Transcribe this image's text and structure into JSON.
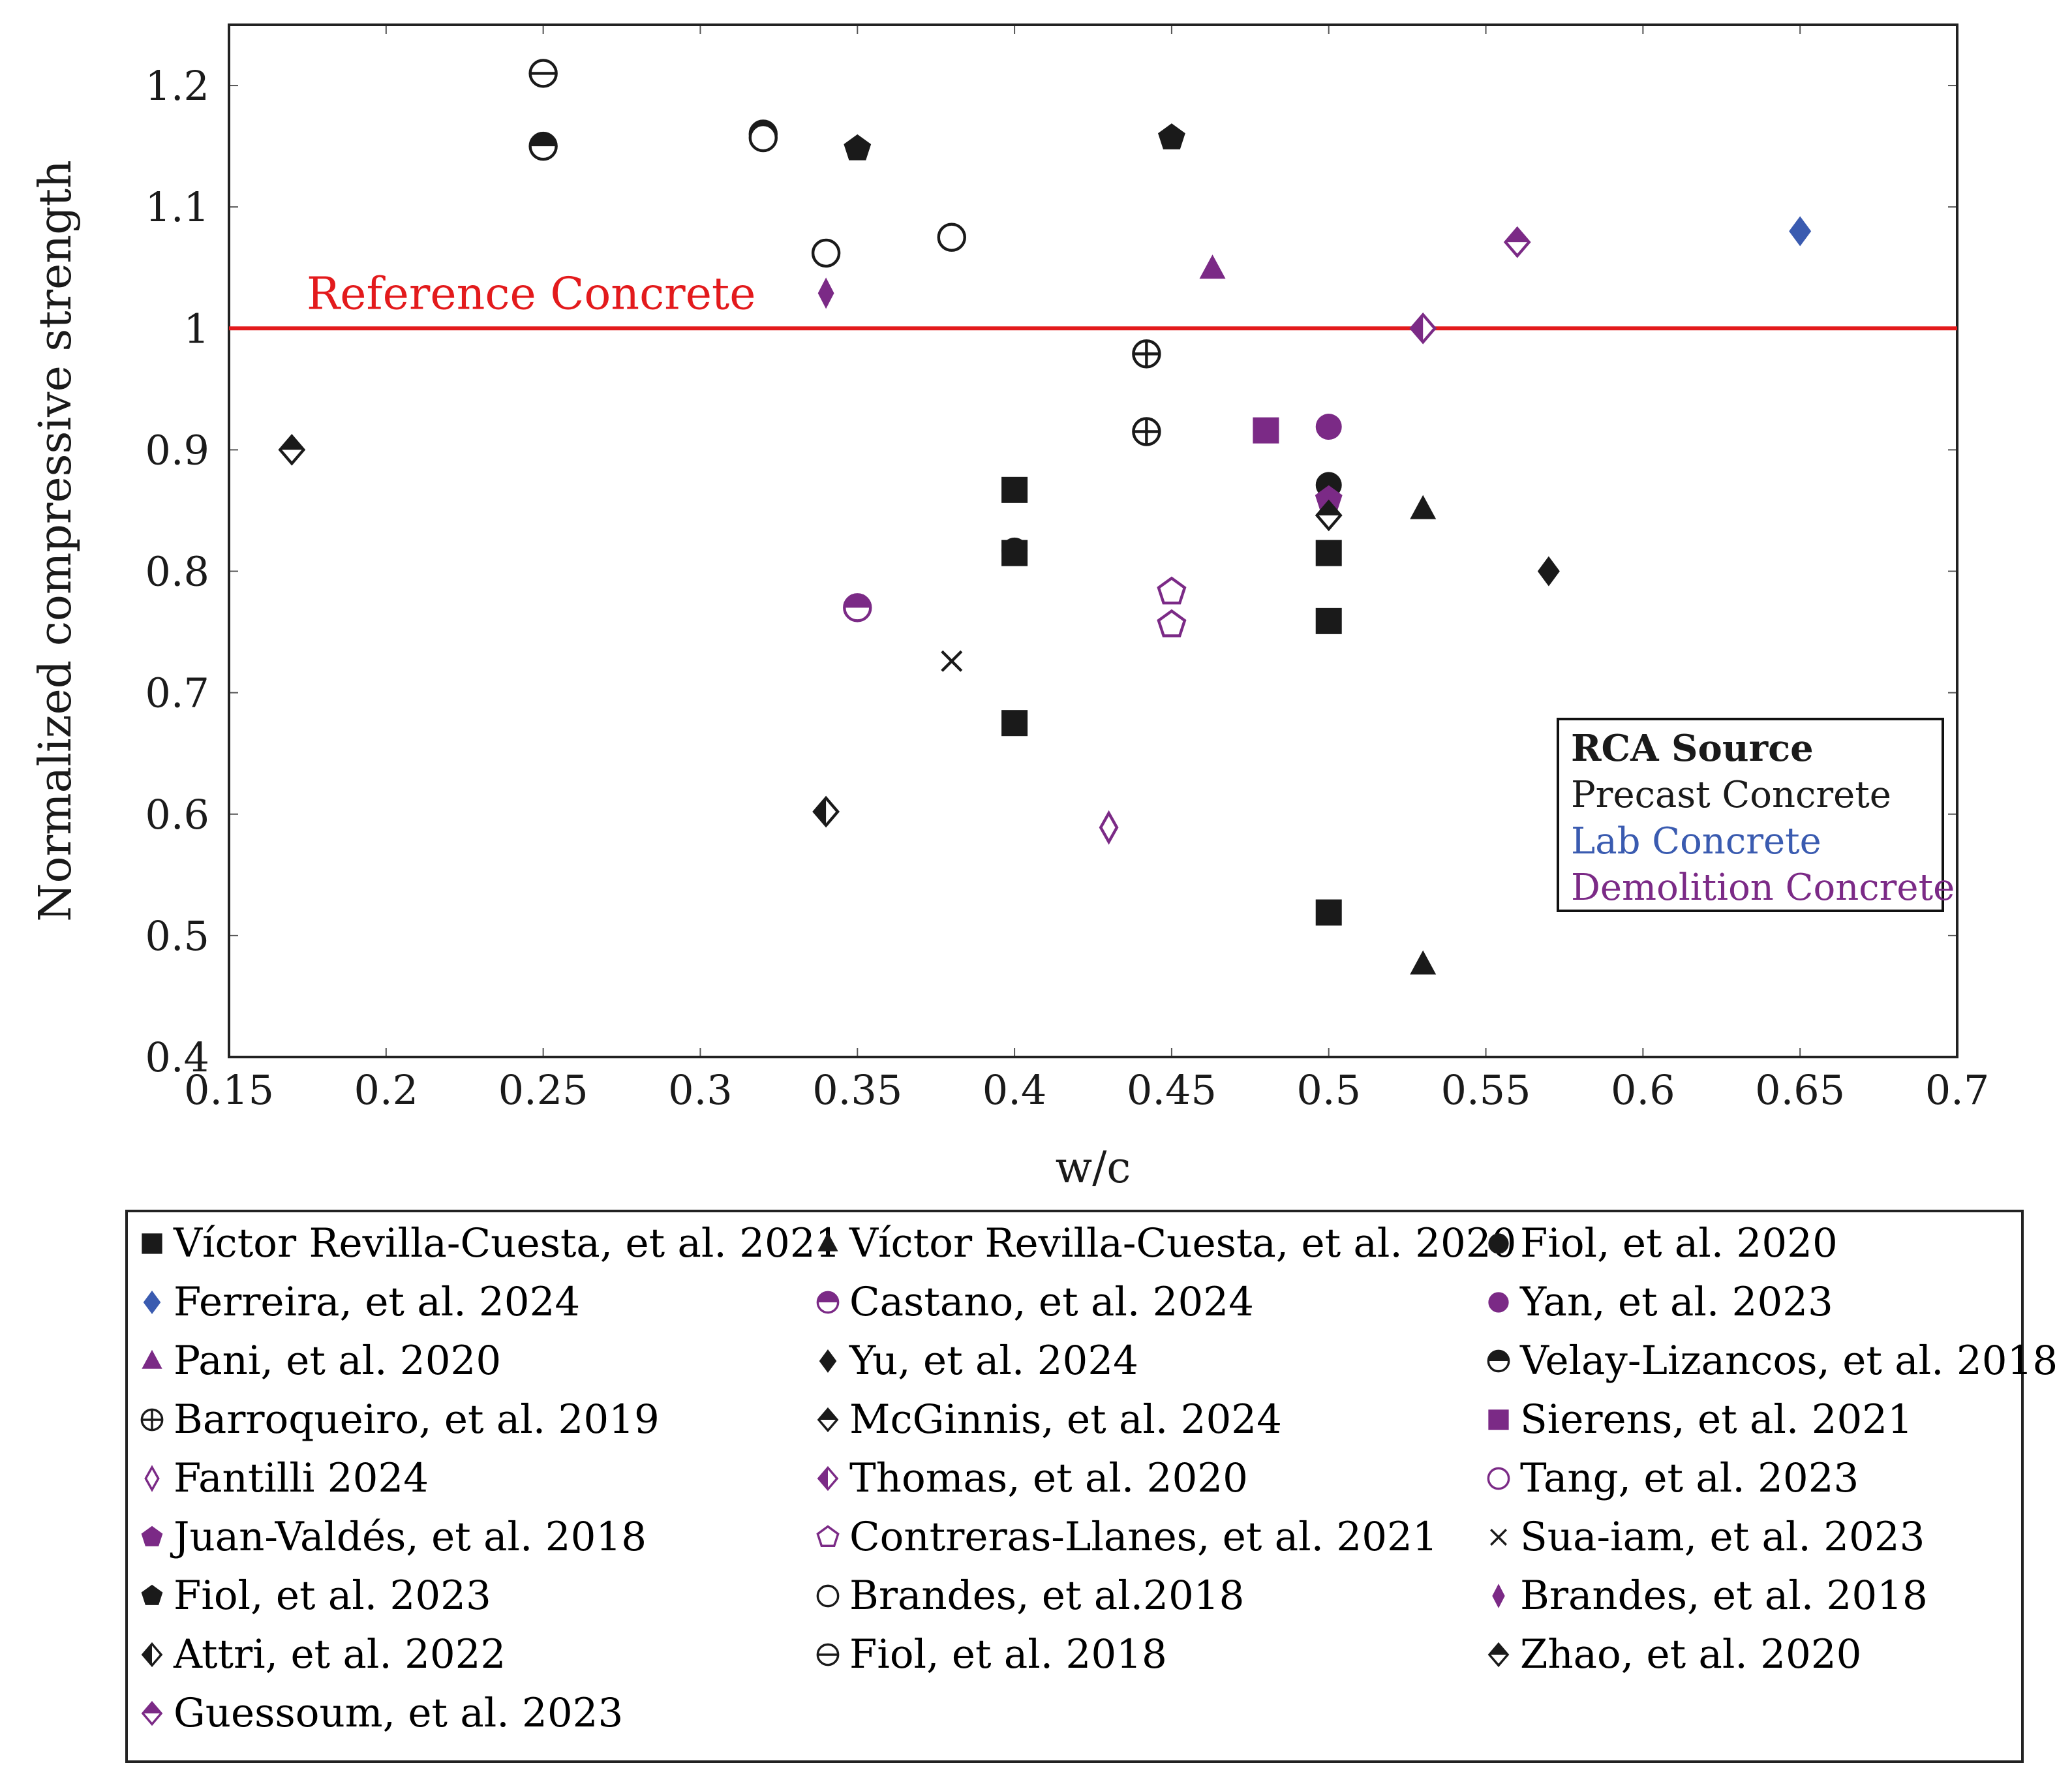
{
  "chart_data": {
    "type": "scatter",
    "title": "",
    "xlabel": "w/c",
    "ylabel": "Normalized compressive strength",
    "xlim": [
      0.15,
      0.7
    ],
    "ylim": [
      0.4,
      1.25
    ],
    "xticks": [
      "0.15",
      "0.2",
      "0.25",
      "0.3",
      "0.35",
      "0.4",
      "0.45",
      "0.5",
      "0.55",
      "0.6",
      "0.65",
      "0.7"
    ],
    "yticks": [
      "0.4",
      "0.5",
      "0.6",
      "0.7",
      "0.8",
      "0.9",
      "1",
      "1.1",
      "1.2"
    ],
    "reference_line": {
      "y": 1.0,
      "label": "Reference Concrete",
      "color": "#e31a1c"
    },
    "source_legend": {
      "title": "RCA Source",
      "entries": [
        {
          "label": "Precast Concrete",
          "color": "#1a1a1a"
        },
        {
          "label": "Lab Concrete",
          "color": "#3a5bb0"
        },
        {
          "label": "Demolition Concrete",
          "color": "#7b2a86"
        }
      ]
    },
    "series": [
      {
        "name": "Víctor Revilla-Cuesta, et al. 2021",
        "marker": "square",
        "color": "#1a1a1a",
        "points": [
          [
            0.4,
            0.867
          ],
          [
            0.4,
            0.815
          ],
          [
            0.4,
            0.675
          ],
          [
            0.5,
            0.815
          ],
          [
            0.5,
            0.759
          ],
          [
            0.5,
            0.519
          ]
        ]
      },
      {
        "name": "Víctor Revilla-Cuesta, et al. 2020",
        "marker": "triangle",
        "color": "#1a1a1a",
        "points": [
          [
            0.53,
            0.851
          ],
          [
            0.53,
            0.476
          ]
        ]
      },
      {
        "name": "Fiol, et al. 2020",
        "marker": "circle",
        "color": "#1a1a1a",
        "points": [
          [
            0.4,
            0.817
          ],
          [
            0.5,
            0.871
          ]
        ]
      },
      {
        "name": "Ferreira, et al. 2024",
        "marker": "diamond",
        "color": "#3a5bb0",
        "points": [
          [
            0.65,
            1.08
          ]
        ]
      },
      {
        "name": "Castano, et al. 2024",
        "marker": "halfcircle-top",
        "color": "#7b2a86",
        "points": [
          [
            0.35,
            0.77
          ]
        ]
      },
      {
        "name": "Yan, et al. 2023",
        "marker": "circle",
        "color": "#7b2a86",
        "points": [
          [
            0.5,
            0.919
          ]
        ]
      },
      {
        "name": "Pani, et al. 2020",
        "marker": "triangle",
        "color": "#7b2a86",
        "points": [
          [
            0.463,
            1.049
          ]
        ]
      },
      {
        "name": "Yu, et al. 2024",
        "marker": "diamond",
        "color": "#1a1a1a",
        "points": [
          [
            0.57,
            0.8
          ]
        ]
      },
      {
        "name": "Velay-Lizancos, et al. 2018",
        "marker": "halfcircle-top",
        "color": "#1a1a1a",
        "points": [
          [
            0.25,
            1.15
          ],
          [
            0.32,
            1.16
          ]
        ]
      },
      {
        "name": "Barroqueiro, et al. 2019",
        "marker": "oplus",
        "color": "#1a1a1a",
        "points": [
          [
            0.442,
            0.979
          ],
          [
            0.442,
            0.915
          ]
        ]
      },
      {
        "name": "McGinnis, et al. 2024",
        "marker": "diamond-top",
        "color": "#1a1a1a",
        "points": [
          [
            0.17,
            0.9
          ]
        ]
      },
      {
        "name": "Sierens, et al. 2021",
        "marker": "square",
        "color": "#7b2a86",
        "points": [
          [
            0.48,
            0.916
          ]
        ]
      },
      {
        "name": "Fantilli 2024",
        "marker": "diamond-thin-open",
        "color": "#7b2a86",
        "points": [
          [
            0.43,
            0.589
          ]
        ]
      },
      {
        "name": "Thomas, et al. 2020",
        "marker": "diamond-half-left",
        "color": "#7b2a86",
        "points": [
          [
            0.53,
            1.0
          ]
        ]
      },
      {
        "name": "Tang, et al. 2023",
        "marker": "circle-open",
        "color": "#7b2a86",
        "points": []
      },
      {
        "name": "Juan-Valdés, et al. 2018",
        "marker": "pentagon",
        "color": "#7b2a86",
        "points": [
          [
            0.5,
            0.859
          ]
        ]
      },
      {
        "name": "Contreras-Llanes, et al. 2021",
        "marker": "pentagon-open",
        "color": "#7b2a86",
        "points": [
          [
            0.45,
            0.783
          ],
          [
            0.45,
            0.756
          ]
        ]
      },
      {
        "name": "Sua-iam, et al. 2023",
        "marker": "cross",
        "color": "#1a1a1a",
        "points": [
          [
            0.38,
            0.726
          ]
        ]
      },
      {
        "name": "Fiol, et al. 2023",
        "marker": "pentagon",
        "color": "#1a1a1a",
        "points": [
          [
            0.35,
            1.148
          ],
          [
            0.45,
            1.157
          ]
        ]
      },
      {
        "name": "Brandes, et al.2018",
        "marker": "circle-open",
        "color": "#1a1a1a",
        "points": [
          [
            0.34,
            1.062
          ],
          [
            0.38,
            1.075
          ],
          [
            0.32,
            1.157
          ]
        ]
      },
      {
        "name": "Brandes, et al. 2018",
        "marker": "diamond-thin",
        "color": "#7b2a86",
        "points": [
          [
            0.34,
            1.029
          ]
        ]
      },
      {
        "name": "Attri, et al. 2022",
        "marker": "diamond-half-left",
        "color": "#1a1a1a",
        "points": [
          [
            0.34,
            0.602
          ]
        ]
      },
      {
        "name": "Fiol, et al. 2018",
        "marker": "ominus",
        "color": "#1a1a1a",
        "points": [
          [
            0.25,
            1.21
          ]
        ]
      },
      {
        "name": "Zhao, et al. 2020",
        "marker": "diamond-top",
        "color": "#1a1a1a",
        "points": [
          [
            0.5,
            0.846
          ]
        ]
      },
      {
        "name": "Guessoum, et al. 2023",
        "marker": "diamond-top",
        "color": "#7b2a86",
        "points": [
          [
            0.56,
            1.071
          ]
        ]
      }
    ]
  }
}
